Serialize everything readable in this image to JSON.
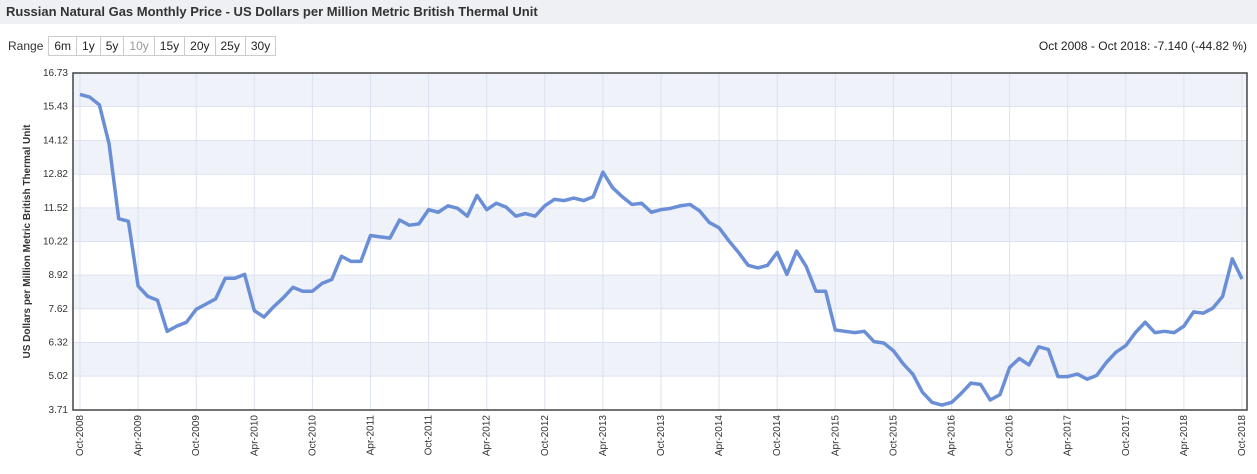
{
  "header": {
    "title": "Russian Natural Gas Monthly Price - US Dollars per Million Metric British Thermal Unit"
  },
  "range": {
    "label": "Range",
    "buttons": [
      "6m",
      "1y",
      "5y",
      "10y",
      "15y",
      "20y",
      "25y",
      "30y"
    ],
    "disabled": "10y"
  },
  "summary": "Oct 2008 - Oct 2018: -7.140 (-44.82 %)",
  "chart_data": {
    "type": "line",
    "ylabel": "US Dollars per Million Metric British Thermal Unit",
    "categories": [
      "Oct-2008",
      null,
      null,
      null,
      null,
      null,
      "Apr-2009",
      null,
      null,
      null,
      null,
      null,
      "Oct-2009",
      null,
      null,
      null,
      null,
      null,
      "Apr-2010",
      null,
      null,
      null,
      null,
      null,
      "Oct-2010",
      null,
      null,
      null,
      null,
      null,
      "Apr-2011",
      null,
      null,
      null,
      null,
      null,
      "Oct-2011",
      null,
      null,
      null,
      null,
      null,
      "Apr-2012",
      null,
      null,
      null,
      null,
      null,
      "Oct-2012",
      null,
      null,
      null,
      null,
      null,
      "Apr-2013",
      null,
      null,
      null,
      null,
      null,
      "Oct-2013",
      null,
      null,
      null,
      null,
      null,
      "Apr-2014",
      null,
      null,
      null,
      null,
      null,
      "Oct-2014",
      null,
      null,
      null,
      null,
      null,
      "Apr-2015",
      null,
      null,
      null,
      null,
      null,
      "Oct-2015",
      null,
      null,
      null,
      null,
      null,
      "Apr-2016",
      null,
      null,
      null,
      null,
      null,
      "Oct-2016",
      null,
      null,
      null,
      null,
      null,
      "Apr-2017",
      null,
      null,
      null,
      null,
      null,
      "Oct-2017",
      null,
      null,
      null,
      null,
      null,
      "Apr-2018",
      null,
      null,
      null,
      null,
      null,
      "Oct-2018"
    ],
    "series": [
      {
        "name": "Russian Natural Gas",
        "color": "#6a8fd6",
        "values": [
          15.9,
          15.8,
          15.5,
          14.0,
          11.1,
          11.0,
          8.5,
          8.1,
          7.95,
          6.75,
          6.95,
          7.1,
          7.6,
          7.8,
          8.0,
          8.8,
          8.8,
          8.95,
          7.55,
          7.3,
          7.7,
          8.05,
          8.45,
          8.3,
          8.3,
          8.6,
          8.75,
          9.65,
          9.45,
          9.45,
          10.45,
          10.4,
          10.35,
          11.05,
          10.85,
          10.9,
          11.45,
          11.35,
          11.6,
          11.5,
          11.2,
          12.0,
          11.45,
          11.7,
          11.55,
          11.2,
          11.3,
          11.2,
          11.6,
          11.85,
          11.8,
          11.9,
          11.8,
          11.95,
          12.9,
          12.3,
          11.95,
          11.65,
          11.7,
          11.35,
          11.45,
          11.5,
          11.6,
          11.65,
          11.4,
          10.95,
          10.75,
          10.25,
          9.8,
          9.3,
          9.2,
          9.3,
          9.8,
          8.95,
          9.85,
          9.25,
          8.3,
          8.3,
          6.8,
          6.75,
          6.7,
          6.75,
          6.35,
          6.3,
          6.0,
          5.5,
          5.1,
          4.4,
          4.0,
          3.9,
          4.0,
          4.35,
          4.75,
          4.7,
          4.1,
          4.3,
          5.35,
          5.7,
          5.45,
          6.15,
          6.05,
          5.0,
          5.0,
          5.1,
          4.9,
          5.05,
          5.55,
          5.95,
          6.2,
          6.7,
          7.1,
          6.7,
          6.75,
          6.7,
          6.95,
          7.5,
          7.45,
          7.65,
          8.1,
          9.55,
          8.77
        ]
      }
    ],
    "ylim": [
      3.71,
      16.73
    ],
    "yticks": [
      3.71,
      5.02,
      6.32,
      7.62,
      8.92,
      10.22,
      11.52,
      12.82,
      14.12,
      15.43,
      16.73
    ],
    "grid": true
  }
}
